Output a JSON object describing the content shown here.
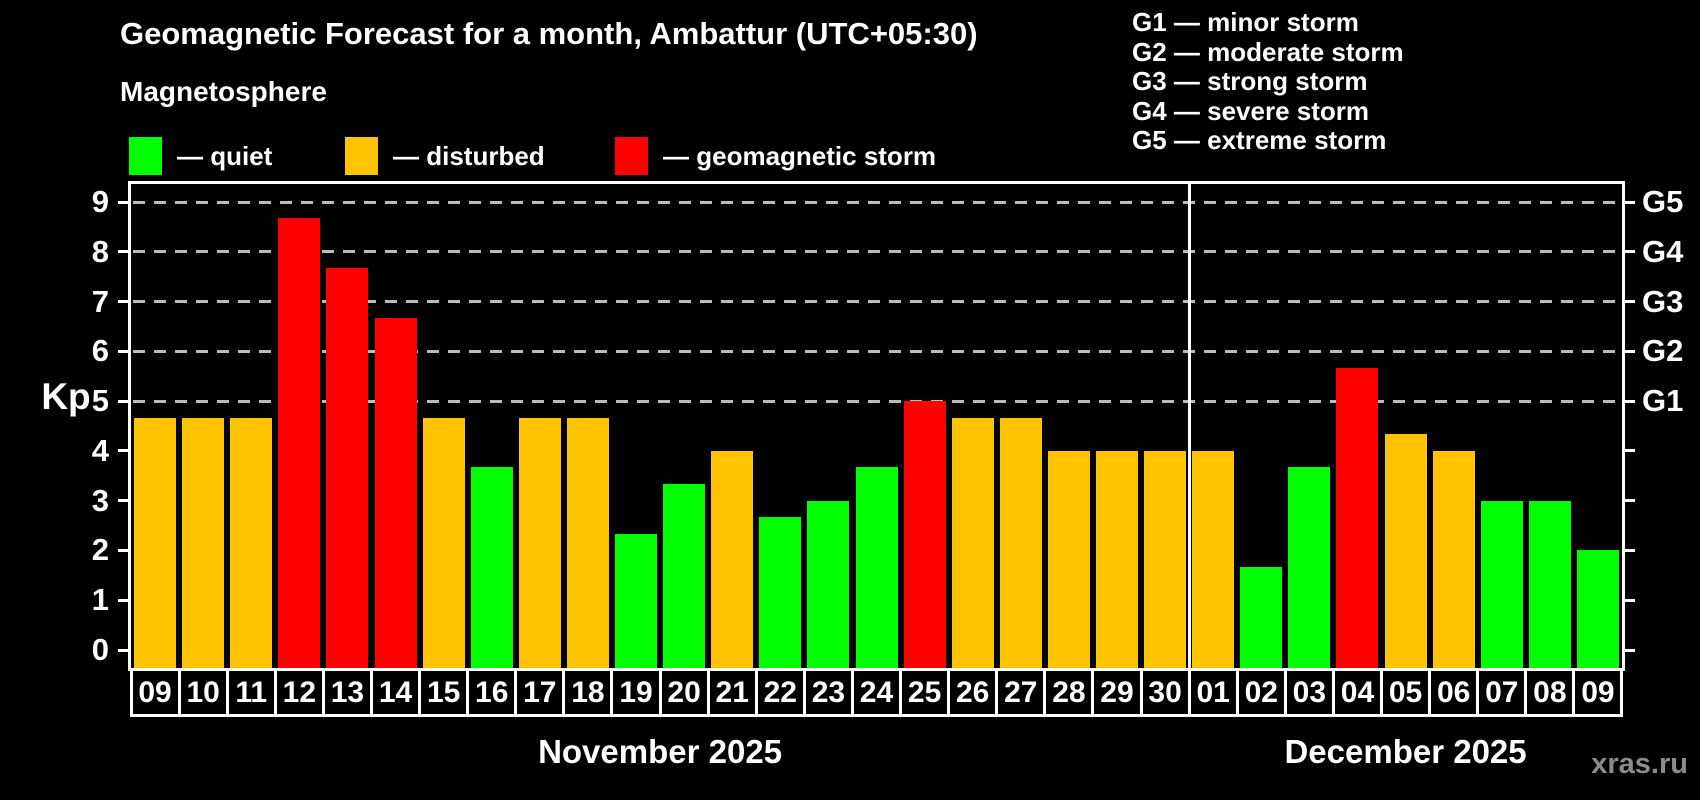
{
  "header": {
    "title": "Geomagnetic Forecast for a month, Ambattur (UTC+05:30)",
    "subtitle": "Magnetosphere"
  },
  "legend": {
    "items": [
      {
        "key": "quiet",
        "label": "— quiet",
        "color": "#00ff00"
      },
      {
        "key": "disturbed",
        "label": "— disturbed",
        "color": "#ffc300"
      },
      {
        "key": "storm",
        "label": "— geomagnetic storm",
        "color": "#ff0000"
      }
    ]
  },
  "storm_scale": {
    "items": [
      {
        "code": "G1",
        "label": "G1 — minor storm",
        "kp": 5
      },
      {
        "code": "G2",
        "label": "G2 — moderate storm",
        "kp": 6
      },
      {
        "code": "G3",
        "label": "G3 — strong storm",
        "kp": 7
      },
      {
        "code": "G4",
        "label": "G4 — severe storm",
        "kp": 8
      },
      {
        "code": "G5",
        "label": "G5 — extreme storm",
        "kp": 9
      }
    ]
  },
  "watermark": "xras.ru",
  "chart_data": {
    "type": "bar",
    "title": "Geomagnetic Forecast for a month, Ambattur (UTC+05:30)",
    "ylabel": "Kp",
    "ylim": [
      0,
      9
    ],
    "yticks": [
      0,
      1,
      2,
      3,
      4,
      5,
      6,
      7,
      8,
      9
    ],
    "gridlines_at": [
      5,
      6,
      7,
      8,
      9
    ],
    "grid_style": "dashed horizontal lines at storm levels only",
    "right_axis": [
      {
        "kp": 5,
        "label": "G1"
      },
      {
        "kp": 6,
        "label": "G2"
      },
      {
        "kp": 7,
        "label": "G3"
      },
      {
        "kp": 8,
        "label": "G4"
      },
      {
        "kp": 9,
        "label": "G5"
      }
    ],
    "state_colors": {
      "quiet": "#00ff00",
      "disturbed": "#ffc300",
      "storm": "#ff0000"
    },
    "months": [
      {
        "label": "November 2025",
        "days": [
          {
            "day": "09",
            "kp": 4.67,
            "state": "disturbed"
          },
          {
            "day": "10",
            "kp": 4.67,
            "state": "disturbed"
          },
          {
            "day": "11",
            "kp": 4.67,
            "state": "disturbed"
          },
          {
            "day": "12",
            "kp": 8.67,
            "state": "storm"
          },
          {
            "day": "13",
            "kp": 7.67,
            "state": "storm"
          },
          {
            "day": "14",
            "kp": 6.67,
            "state": "storm"
          },
          {
            "day": "15",
            "kp": 4.67,
            "state": "disturbed"
          },
          {
            "day": "16",
            "kp": 3.67,
            "state": "quiet"
          },
          {
            "day": "17",
            "kp": 4.67,
            "state": "disturbed"
          },
          {
            "day": "18",
            "kp": 4.67,
            "state": "disturbed"
          },
          {
            "day": "19",
            "kp": 2.33,
            "state": "quiet"
          },
          {
            "day": "20",
            "kp": 3.33,
            "state": "quiet"
          },
          {
            "day": "21",
            "kp": 4.0,
            "state": "disturbed"
          },
          {
            "day": "22",
            "kp": 2.67,
            "state": "quiet"
          },
          {
            "day": "23",
            "kp": 3.0,
            "state": "quiet"
          },
          {
            "day": "24",
            "kp": 3.67,
            "state": "quiet"
          },
          {
            "day": "25",
            "kp": 5.0,
            "state": "storm"
          },
          {
            "day": "26",
            "kp": 4.67,
            "state": "disturbed"
          },
          {
            "day": "27",
            "kp": 4.67,
            "state": "disturbed"
          },
          {
            "day": "28",
            "kp": 4.0,
            "state": "disturbed"
          },
          {
            "day": "29",
            "kp": 4.0,
            "state": "disturbed"
          },
          {
            "day": "30",
            "kp": 4.0,
            "state": "disturbed"
          }
        ]
      },
      {
        "label": "December 2025",
        "days": [
          {
            "day": "01",
            "kp": 4.0,
            "state": "disturbed"
          },
          {
            "day": "02",
            "kp": 1.67,
            "state": "quiet"
          },
          {
            "day": "03",
            "kp": 3.67,
            "state": "quiet"
          },
          {
            "day": "04",
            "kp": 5.67,
            "state": "storm"
          },
          {
            "day": "05",
            "kp": 4.33,
            "state": "disturbed"
          },
          {
            "day": "06",
            "kp": 4.0,
            "state": "disturbed"
          },
          {
            "day": "07",
            "kp": 3.0,
            "state": "quiet"
          },
          {
            "day": "08",
            "kp": 3.0,
            "state": "quiet"
          },
          {
            "day": "09",
            "kp": 2.0,
            "state": "quiet"
          }
        ]
      }
    ]
  }
}
